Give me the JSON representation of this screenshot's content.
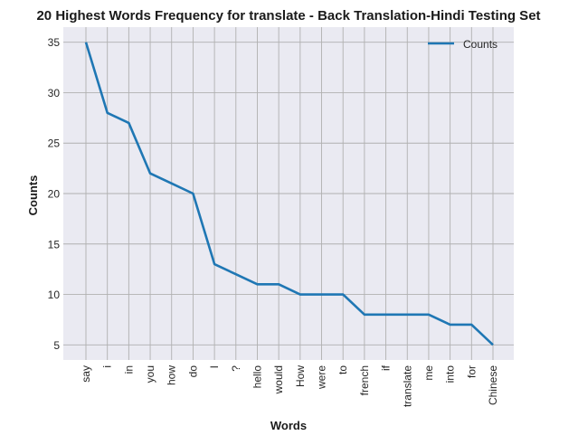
{
  "chart_data": {
    "type": "line",
    "title": "20 Highest Words Frequency for translate - Back Translation-Hindi Testing Set",
    "xlabel": "Words",
    "ylabel": "Counts",
    "categories": [
      "say",
      "i",
      "in",
      "you",
      "how",
      "do",
      "I",
      "?",
      "hello",
      "would",
      "How",
      "were",
      "to",
      "french",
      "if",
      "translate",
      "me",
      "into",
      "for",
      "Chinese"
    ],
    "series": [
      {
        "name": "Counts",
        "values": [
          35,
          28,
          27,
          22,
          21,
          20,
          13,
          12,
          11,
          11,
          10,
          10,
          10,
          8,
          8,
          8,
          8,
          7,
          7,
          5
        ]
      }
    ],
    "ylim": [
      3.5,
      36.5
    ],
    "yticks": [
      5,
      10,
      15,
      20,
      25,
      30,
      35
    ],
    "grid": true,
    "legend_position": "upper-right",
    "colors": {
      "line": "#1f77b4",
      "plot_background": "#eaeaf2",
      "grid": "#b0b0b0"
    }
  }
}
